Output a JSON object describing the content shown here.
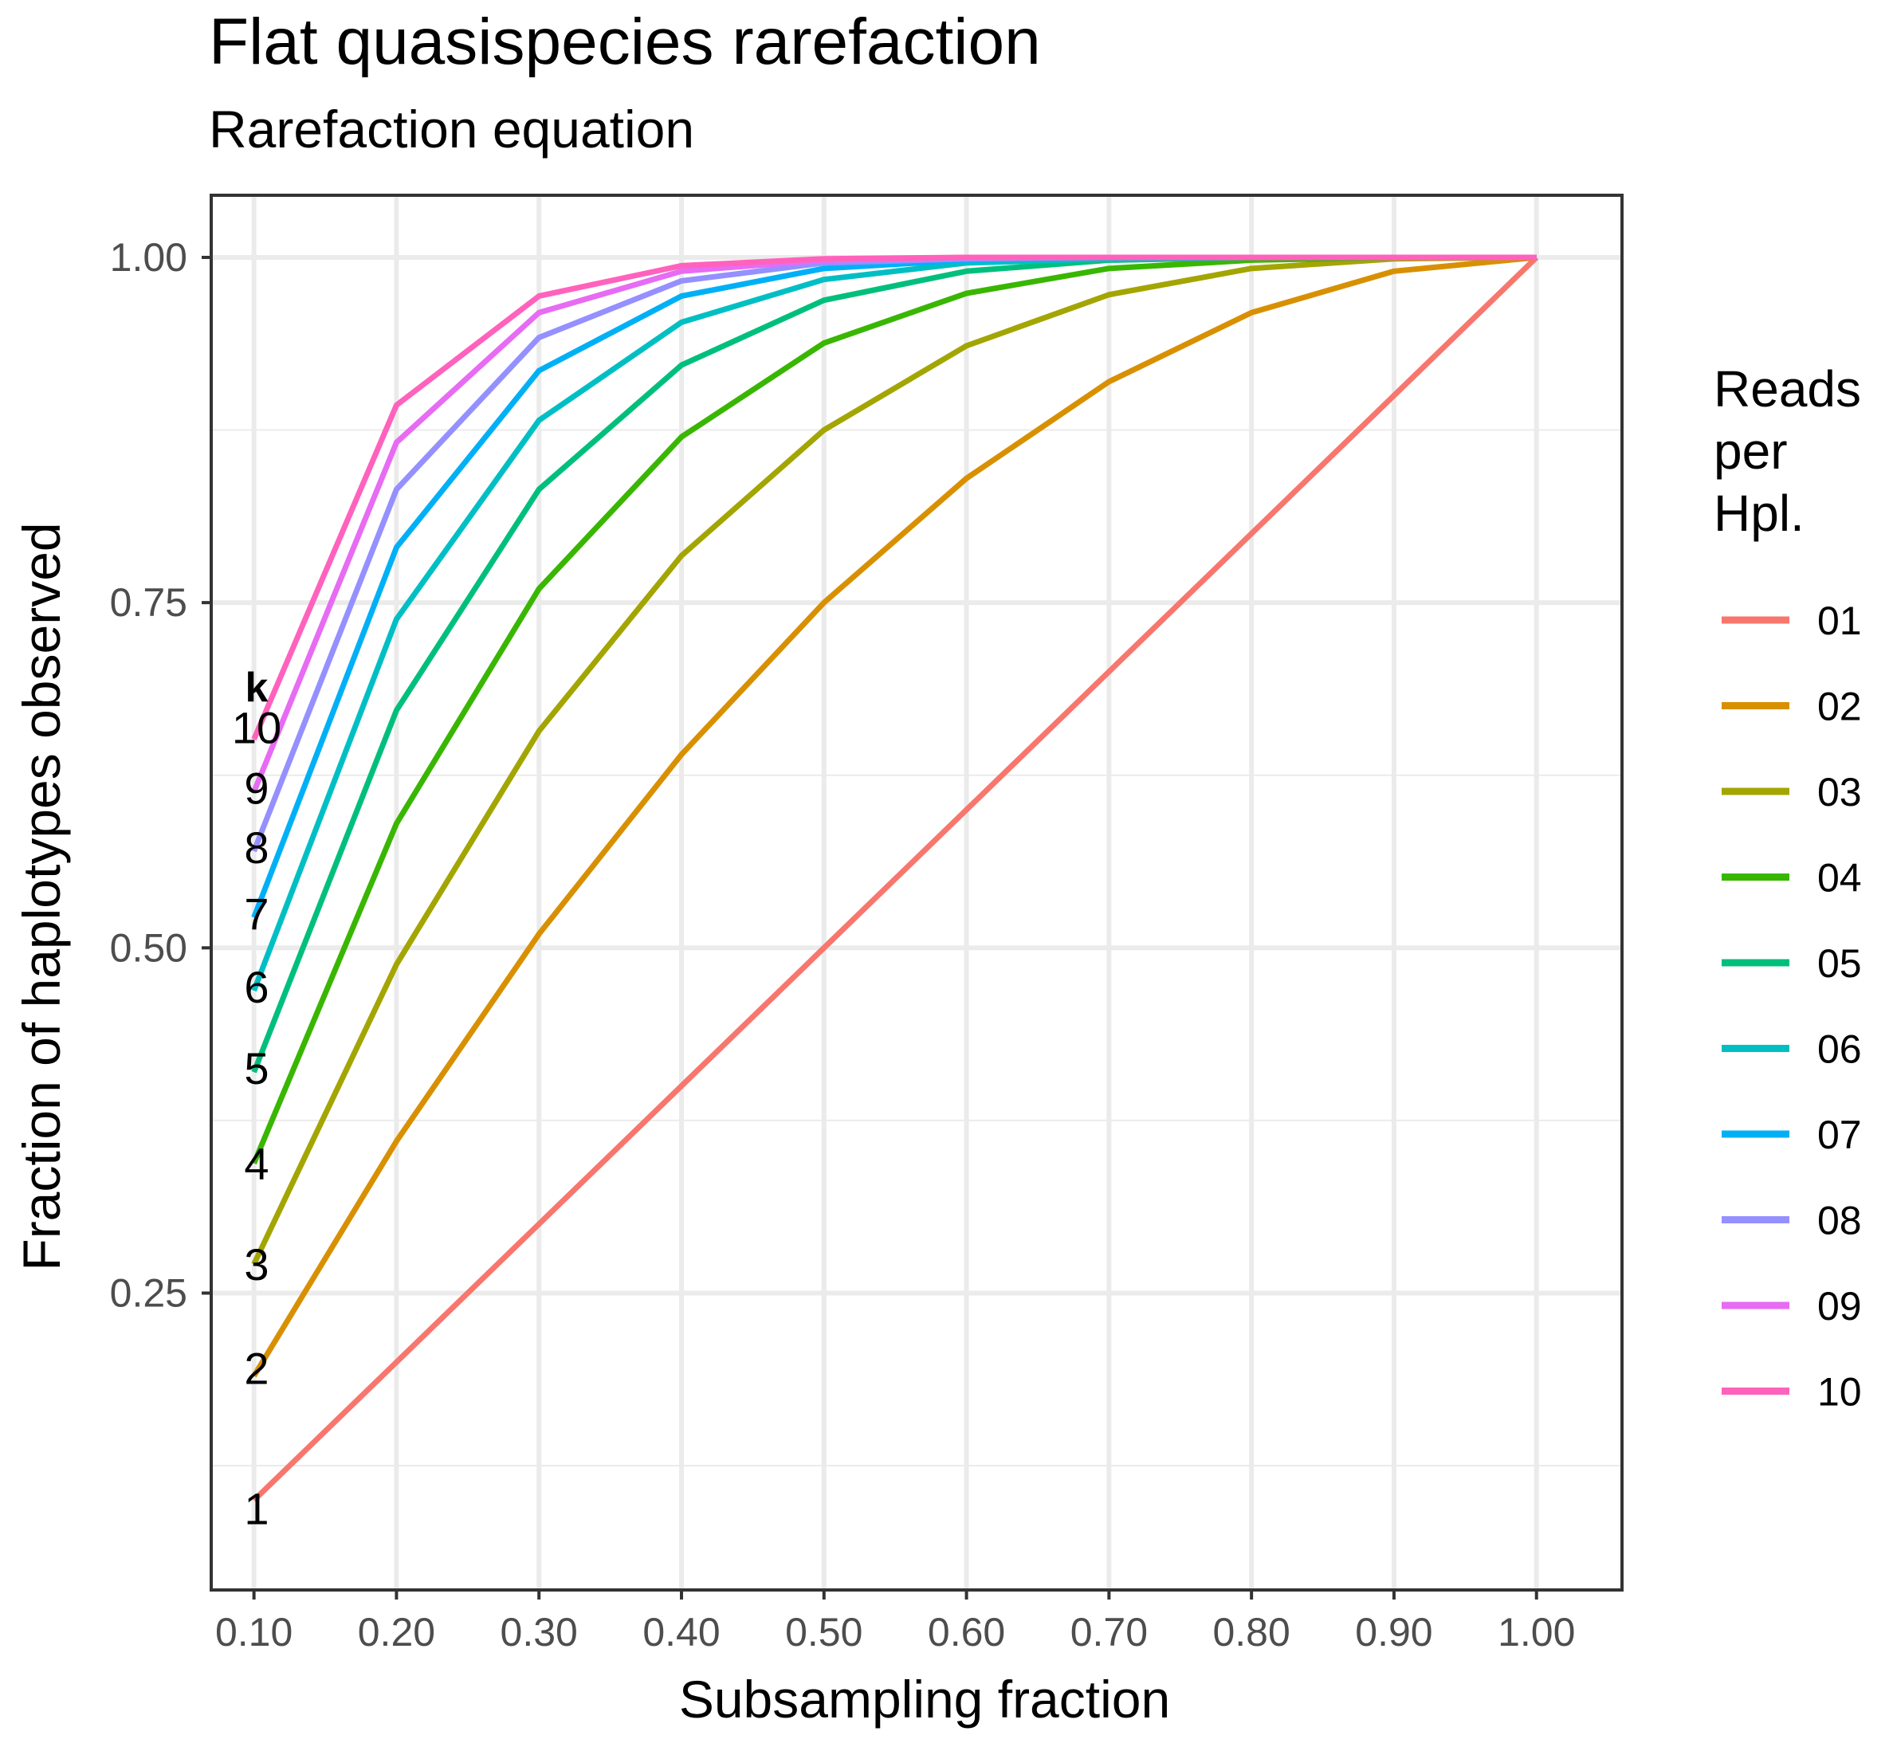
{
  "chart_data": {
    "type": "line",
    "title": "Flat quasispecies rarefaction",
    "subtitle": "Rarefaction equation",
    "xlabel": "Subsampling fraction",
    "ylabel": "Fraction of haplotypes observed",
    "xlim": [
      0.07,
      1.06
    ],
    "ylim": [
      0.035,
      1.045
    ],
    "x": [
      0.1,
      0.2,
      0.3,
      0.4,
      0.5,
      0.6,
      0.7,
      0.8,
      0.9,
      1.0
    ],
    "x_tick_labels": [
      "0.10",
      "0.20",
      "0.30",
      "0.40",
      "0.50",
      "0.60",
      "0.70",
      "0.80",
      "0.90",
      "1.00"
    ],
    "y_ticks": [
      0.25,
      0.5,
      0.75,
      1.0
    ],
    "y_tick_labels": [
      "0.25",
      "0.50",
      "0.75",
      "1.00"
    ],
    "grid": true,
    "legend": {
      "title_lines": [
        "Reads",
        "per",
        "Hpl."
      ],
      "position": "right"
    },
    "k_header": "k",
    "series": [
      {
        "name": "01",
        "k_label": "1",
        "color": "#F8766D",
        "values": [
          0.1,
          0.2,
          0.3,
          0.4,
          0.5,
          0.6,
          0.7,
          0.8,
          0.9,
          1.0
        ]
      },
      {
        "name": "02",
        "k_label": "2",
        "color": "#D89000",
        "values": [
          0.19,
          0.36,
          0.51,
          0.64,
          0.75,
          0.84,
          0.91,
          0.96,
          0.99,
          1.0
        ]
      },
      {
        "name": "03",
        "k_label": "3",
        "color": "#A3A500",
        "values": [
          0.271,
          0.488,
          0.657,
          0.784,
          0.875,
          0.936,
          0.973,
          0.992,
          0.999,
          1.0
        ]
      },
      {
        "name": "04",
        "k_label": "4",
        "color": "#39B600",
        "values": [
          0.344,
          0.59,
          0.76,
          0.87,
          0.938,
          0.974,
          0.992,
          0.998,
          1.0,
          1.0
        ]
      },
      {
        "name": "05",
        "k_label": "5",
        "color": "#00BF7D",
        "values": [
          0.41,
          0.672,
          0.832,
          0.922,
          0.969,
          0.99,
          0.998,
          1.0,
          1.0,
          1.0
        ]
      },
      {
        "name": "06",
        "k_label": "6",
        "color": "#00BFC4",
        "values": [
          0.469,
          0.738,
          0.882,
          0.953,
          0.984,
          0.996,
          0.999,
          1.0,
          1.0,
          1.0
        ]
      },
      {
        "name": "07",
        "k_label": "7",
        "color": "#00B0F6",
        "values": [
          0.522,
          0.79,
          0.918,
          0.972,
          0.992,
          0.998,
          1.0,
          1.0,
          1.0,
          1.0
        ]
      },
      {
        "name": "08",
        "k_label": "8",
        "color": "#9590FF",
        "values": [
          0.57,
          0.832,
          0.942,
          0.983,
          0.996,
          0.999,
          1.0,
          1.0,
          1.0,
          1.0
        ]
      },
      {
        "name": "09",
        "k_label": "9",
        "color": "#E76BF3",
        "values": [
          0.613,
          0.866,
          0.96,
          0.99,
          0.998,
          1.0,
          1.0,
          1.0,
          1.0,
          1.0
        ]
      },
      {
        "name": "10",
        "k_label": "10",
        "color": "#FF62BC",
        "values": [
          0.651,
          0.893,
          0.972,
          0.994,
          0.999,
          1.0,
          1.0,
          1.0,
          1.0,
          1.0
        ]
      }
    ]
  }
}
